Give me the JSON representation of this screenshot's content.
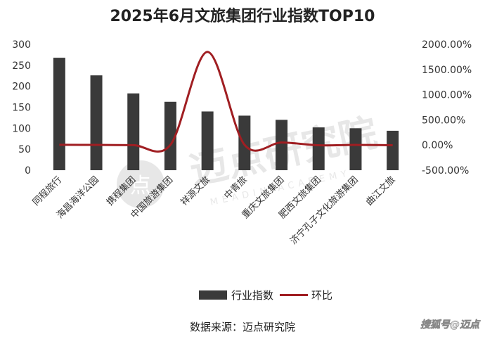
{
  "chart_data": {
    "type": "bar",
    "title": "2025年6月文旅集团行业指数TOP10",
    "categories": [
      "同程旅行",
      "海昌海洋公园",
      "携程集团",
      "中国旅游集团",
      "祥源文旅",
      "中青旅",
      "重庆文旅集团",
      "肥西文旅集团",
      "济宁孔子文化旅游集团",
      "曲江文旅"
    ],
    "series": [
      {
        "name": "行业指数",
        "type": "bar",
        "axis": "left",
        "color": "#3a3a3a",
        "values": [
          268,
          226,
          183,
          163,
          140,
          130,
          120,
          102,
          100,
          94
        ]
      },
      {
        "name": "环比",
        "type": "line",
        "axis": "right",
        "color": "#a01e22",
        "values": [
          5.0,
          2.0,
          -2.0,
          3.0,
          1850.0,
          5.0,
          50.0,
          -5.0,
          2.0,
          -5.0
        ],
        "unit": "%"
      }
    ],
    "ylim_left": [
      0,
      300
    ],
    "yticks_left": [
      "0",
      "50",
      "100",
      "150",
      "200",
      "250",
      "300"
    ],
    "ylim_right": [
      -500,
      2000
    ],
    "yticks_right": [
      "-500.00%",
      "0.00%",
      "500.00%",
      "1000.00%",
      "1500.00%",
      "2000.00%"
    ],
    "grid": false,
    "legend_position": "bottom"
  },
  "source_text": "数据来源：迈点研究院",
  "watermark": {
    "cn": "迈点研究院",
    "en": "MEADIN ACADEMY",
    "logo": "点"
  },
  "footer_badge": "搜狐号@迈点",
  "colors": {
    "bar": "#3a3a3a",
    "line": "#a01e22"
  }
}
